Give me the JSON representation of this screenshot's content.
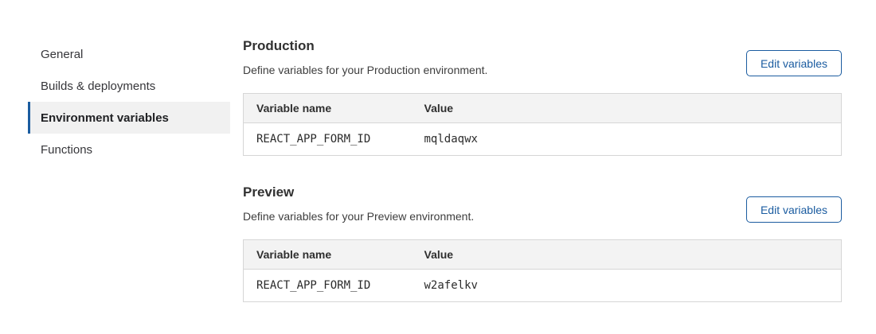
{
  "colors": {
    "accent": "#1b5ca0",
    "selected_nav_bg": "#f1f1f1",
    "table_header_bg": "#f3f3f3",
    "table_border": "#d6d6d6"
  },
  "sidebar": {
    "items": [
      {
        "label": "General",
        "selected": false
      },
      {
        "label": "Builds & deployments",
        "selected": false
      },
      {
        "label": "Environment variables",
        "selected": true
      },
      {
        "label": "Functions",
        "selected": false
      }
    ]
  },
  "sections": [
    {
      "title": "Production",
      "description": "Define variables for your Production environment.",
      "button_label": "Edit variables",
      "table": {
        "headers": [
          "Variable name",
          "Value"
        ],
        "rows": [
          [
            "REACT_APP_FORM_ID",
            "mqldaqwx"
          ]
        ]
      }
    },
    {
      "title": "Preview",
      "description": "Define variables for your Preview environment.",
      "button_label": "Edit variables",
      "table": {
        "headers": [
          "Variable name",
          "Value"
        ],
        "rows": [
          [
            "REACT_APP_FORM_ID",
            "w2afelkv"
          ]
        ]
      }
    }
  ]
}
